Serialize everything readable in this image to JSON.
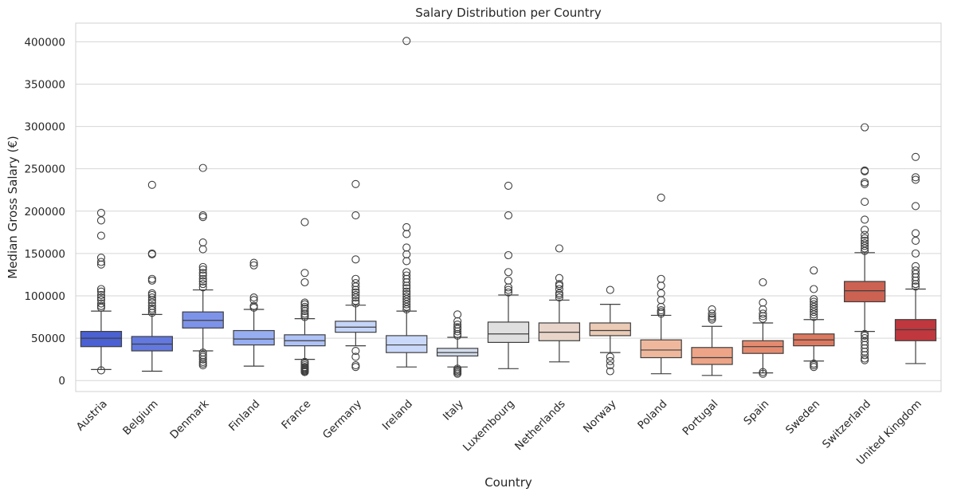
{
  "chart_data": {
    "type": "box",
    "title": "Salary Distribution per Country",
    "xlabel": "Country",
    "ylabel": "Median Gross Salary (€)",
    "ylim": [
      -13000,
      422000
    ],
    "yticks": [
      0,
      50000,
      100000,
      150000,
      200000,
      250000,
      300000,
      350000,
      400000
    ],
    "ytick_labels": [
      "0",
      "50000",
      "100000",
      "150000",
      "200000",
      "250000",
      "300000",
      "350000",
      "400000"
    ],
    "grid": "horizontal",
    "legend": "none",
    "boxes": [
      {
        "category": "Austria",
        "color": "#4a60d3",
        "whisker_low": 13000,
        "q1": 40000,
        "median": 50000,
        "q3": 58000,
        "whisker_high": 82000,
        "outliers": [
          12000,
          86000,
          88000,
          91000,
          95000,
          98000,
          101000,
          105000,
          108000,
          137000,
          140000,
          145000,
          171000,
          189000,
          198000
        ]
      },
      {
        "category": "Belgium",
        "color": "#6379df",
        "whisker_low": 11000,
        "q1": 35000,
        "median": 43000,
        "q3": 52000,
        "whisker_high": 78000,
        "outliers": [
          80000,
          83000,
          85000,
          88000,
          92000,
          95000,
          98000,
          101000,
          103000,
          118000,
          120000,
          149000,
          150000,
          231000
        ]
      },
      {
        "category": "Denmark",
        "color": "#7d93ea",
        "whisker_low": 35000,
        "q1": 62000,
        "median": 71000,
        "q3": 81000,
        "whisker_high": 107000,
        "outliers": [
          18000,
          20000,
          22000,
          25000,
          28000,
          30000,
          33000,
          110000,
          114000,
          117000,
          120000,
          124000,
          127000,
          131000,
          134000,
          155000,
          163000,
          193000,
          195000,
          251000
        ]
      },
      {
        "category": "Finland",
        "color": "#97aef2",
        "whisker_low": 17000,
        "q1": 42000,
        "median": 49000,
        "q3": 59000,
        "whisker_high": 84000,
        "outliers": [
          86000,
          88000,
          95000,
          98000,
          136000,
          139000
        ]
      },
      {
        "category": "France",
        "color": "#aec2f7",
        "whisker_low": 25000,
        "q1": 41000,
        "median": 47000,
        "q3": 54000,
        "whisker_high": 73000,
        "outliers": [
          10000,
          11000,
          12000,
          13000,
          14000,
          15000,
          16000,
          18000,
          20000,
          22000,
          75000,
          77000,
          79000,
          82000,
          85000,
          87000,
          90000,
          92000,
          116000,
          127000,
          187000
        ]
      },
      {
        "category": "Germany",
        "color": "#c5d5f9",
        "whisker_low": 41000,
        "q1": 57000,
        "median": 63000,
        "q3": 70000,
        "whisker_high": 89000,
        "outliers": [
          16000,
          18000,
          28000,
          35000,
          91000,
          94000,
          98000,
          101000,
          104000,
          107000,
          111000,
          115000,
          120000,
          143000,
          195000,
          232000
        ]
      },
      {
        "category": "Ireland",
        "color": "#cad8f9",
        "whisker_low": 16000,
        "q1": 33000,
        "median": 42000,
        "q3": 53000,
        "whisker_high": 82000,
        "outliers": [
          84000,
          87000,
          90000,
          93000,
          96000,
          99000,
          102000,
          105000,
          109000,
          112000,
          116000,
          120000,
          124000,
          128000,
          141000,
          149000,
          157000,
          173000,
          181000,
          401000
        ]
      },
      {
        "category": "Italy",
        "color": "#d4dcec",
        "whisker_low": 16000,
        "q1": 29000,
        "median": 33000,
        "q3": 38000,
        "whisker_high": 51000,
        "outliers": [
          8000,
          9500,
          11000,
          12500,
          14000,
          53000,
          55000,
          58000,
          61000,
          63000,
          66000,
          70000,
          78000
        ]
      },
      {
        "category": "Luxembourg",
        "color": "#dfdfdf",
        "whisker_low": 14000,
        "q1": 45000,
        "median": 55000,
        "q3": 69000,
        "whisker_high": 101000,
        "outliers": [
          104000,
          107000,
          110000,
          118000,
          128000,
          148000,
          195000,
          230000
        ]
      },
      {
        "category": "Netherlands",
        "color": "#e8d4c9",
        "whisker_low": 22000,
        "q1": 47000,
        "median": 57000,
        "q3": 68000,
        "whisker_high": 95000,
        "outliers": [
          98000,
          101000,
          103000,
          108000,
          112000,
          114000,
          121000,
          156000
        ]
      },
      {
        "category": "Norway",
        "color": "#ebcab6",
        "whisker_low": 33000,
        "q1": 53000,
        "median": 59000,
        "q3": 68000,
        "whisker_high": 90000,
        "outliers": [
          11000,
          18000,
          23000,
          28000,
          107000
        ]
      },
      {
        "category": "Poland",
        "color": "#efb89d",
        "whisker_low": 8000,
        "q1": 27000,
        "median": 36000,
        "q3": 48000,
        "whisker_high": 77000,
        "outliers": [
          79000,
          81000,
          83000,
          87000,
          95000,
          103000,
          112000,
          120000,
          216000
        ]
      },
      {
        "category": "Portugal",
        "color": "#eda487",
        "whisker_low": 6000,
        "q1": 19000,
        "median": 27000,
        "q3": 39000,
        "whisker_high": 64000,
        "outliers": [
          72000,
          74000,
          76000,
          79000,
          84000
        ]
      },
      {
        "category": "Spain",
        "color": "#e48b6f",
        "whisker_low": 9000,
        "q1": 32000,
        "median": 40000,
        "q3": 47000,
        "whisker_high": 68000,
        "outliers": [
          8000,
          10000,
          73000,
          76000,
          79000,
          84000,
          92000,
          116000
        ]
      },
      {
        "category": "Sweden",
        "color": "#dd7960",
        "whisker_low": 23000,
        "q1": 41000,
        "median": 48000,
        "q3": 55000,
        "whisker_high": 72000,
        "outliers": [
          16000,
          18000,
          20000,
          75000,
          78000,
          81000,
          84000,
          87000,
          90000,
          93000,
          96000,
          108000,
          130000
        ]
      },
      {
        "category": "Switzerland",
        "color": "#cc6252",
        "whisker_low": 58000,
        "q1": 93000,
        "median": 106000,
        "q3": 117000,
        "whisker_high": 151000,
        "outliers": [
          24000,
          26000,
          30000,
          34000,
          38000,
          42000,
          46000,
          50000,
          53000,
          55000,
          153000,
          156000,
          159000,
          162000,
          165000,
          168000,
          172000,
          178000,
          190000,
          211000,
          232000,
          234000,
          247000,
          248000,
          299000
        ]
      },
      {
        "category": "United Kingdom",
        "color": "#c0373d",
        "whisker_low": 20000,
        "q1": 47000,
        "median": 60000,
        "q3": 72000,
        "whisker_high": 108000,
        "outliers": [
          111000,
          114000,
          118000,
          122000,
          126000,
          130000,
          135000,
          150000,
          165000,
          174000,
          206000,
          237000,
          240000,
          264000
        ]
      }
    ]
  }
}
